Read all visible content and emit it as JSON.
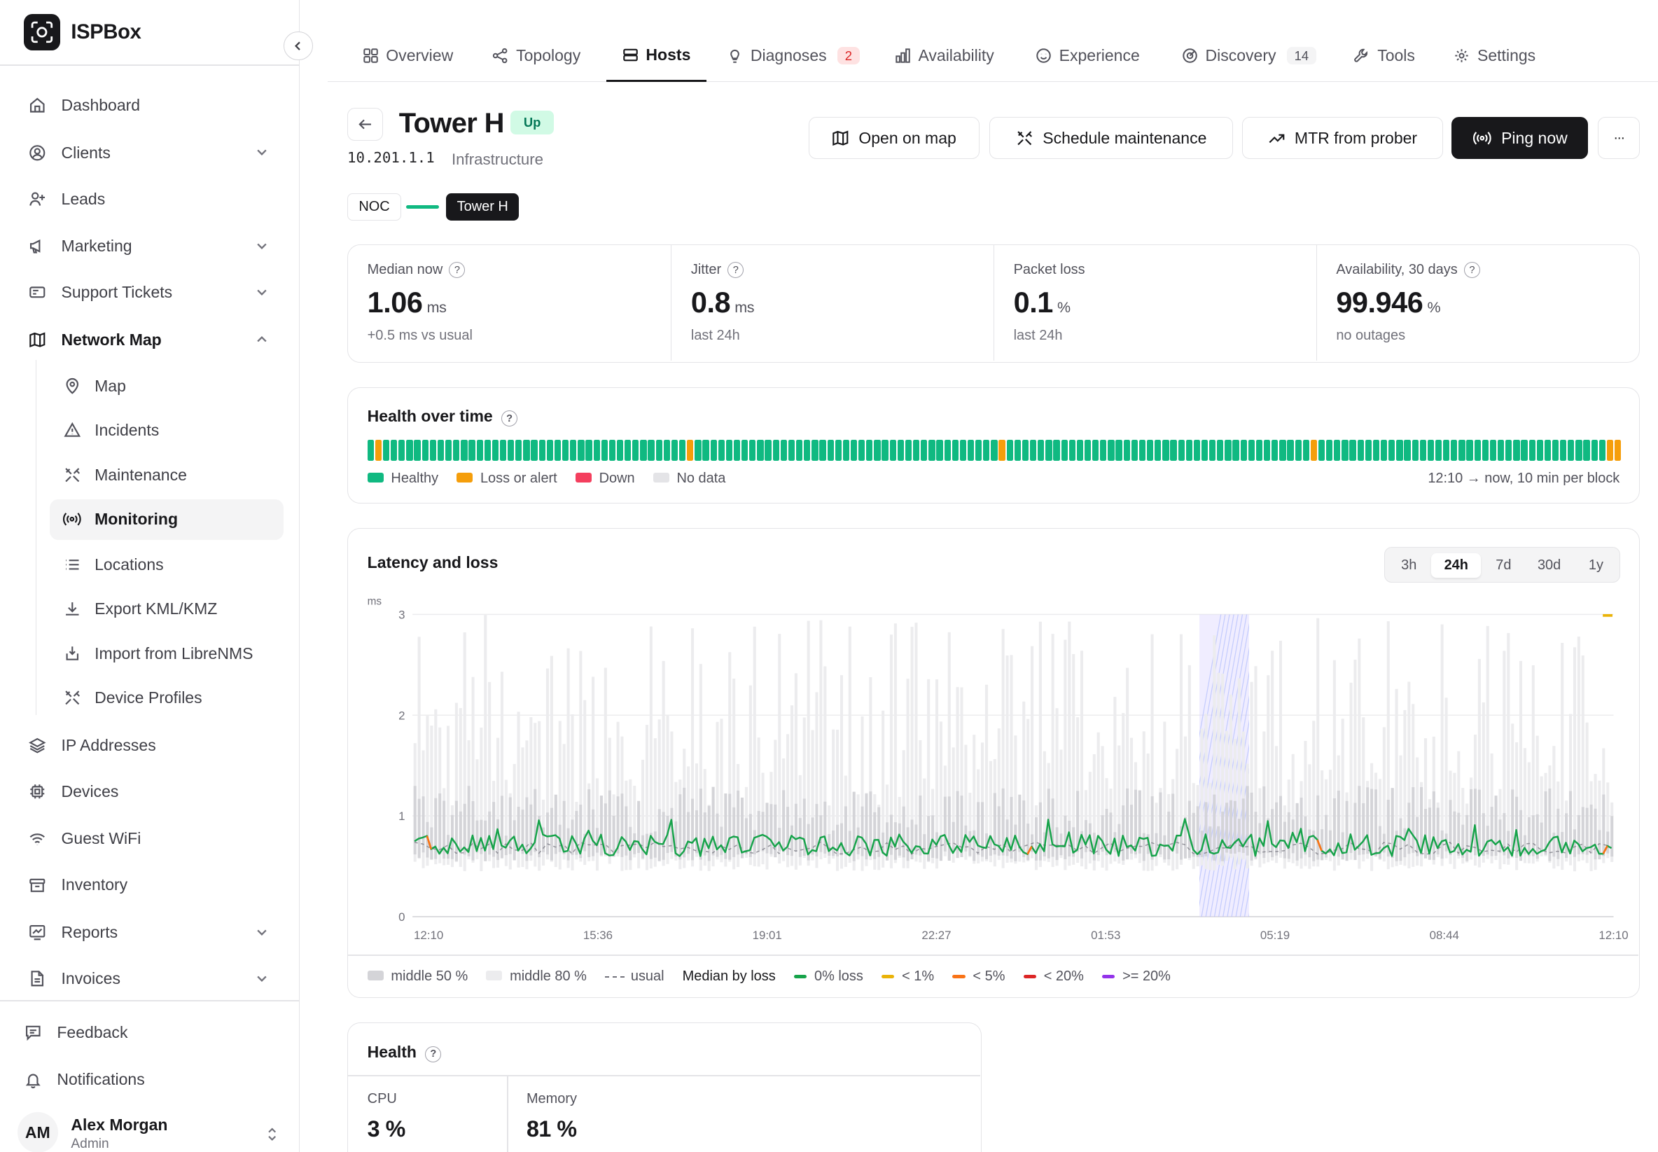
{
  "app": {
    "name": "ISPBox"
  },
  "sidebar": {
    "items": [
      {
        "label": "Dashboard"
      },
      {
        "label": "Clients"
      },
      {
        "label": "Leads"
      },
      {
        "label": "Marketing"
      },
      {
        "label": "Support Tickets"
      },
      {
        "label": "Network Map"
      },
      {
        "label": "IP Addresses"
      },
      {
        "label": "Devices"
      },
      {
        "label": "Guest WiFi"
      },
      {
        "label": "Inventory"
      },
      {
        "label": "Reports"
      },
      {
        "label": "Invoices"
      }
    ],
    "sub_items": [
      {
        "label": "Map"
      },
      {
        "label": "Incidents"
      },
      {
        "label": "Maintenance"
      },
      {
        "label": "Monitoring"
      },
      {
        "label": "Locations"
      },
      {
        "label": "Export KML/KMZ"
      },
      {
        "label": "Import from LibreNMS"
      },
      {
        "label": "Device Profiles"
      }
    ],
    "footer": [
      {
        "label": "Feedback"
      },
      {
        "label": "Notifications"
      }
    ],
    "user": {
      "initials": "AM",
      "name": "Alex Morgan",
      "role": "Admin"
    }
  },
  "tabs": [
    {
      "label": "Overview"
    },
    {
      "label": "Topology"
    },
    {
      "label": "Hosts"
    },
    {
      "label": "Diagnoses",
      "badge": "2"
    },
    {
      "label": "Availability"
    },
    {
      "label": "Experience"
    },
    {
      "label": "Discovery",
      "badge": "14"
    },
    {
      "label": "Tools"
    },
    {
      "label": "Settings"
    }
  ],
  "host": {
    "name": "Tower H",
    "status": "Up",
    "ip": "10.201.1.1",
    "role": "Infrastructure"
  },
  "actions": {
    "open_map": "Open on map",
    "schedule": "Schedule maintenance",
    "mtr": "MTR from prober",
    "ping": "Ping now",
    "more": "···"
  },
  "path": {
    "from": "NOC",
    "to": "Tower H"
  },
  "stats": [
    {
      "label": "Median now",
      "value": "1.06",
      "unit": "ms",
      "sub": "+0.5 ms vs usual"
    },
    {
      "label": "Jitter",
      "value": "0.8",
      "unit": "ms",
      "sub": "last 24h"
    },
    {
      "label": "Packet loss",
      "value": "0.1",
      "unit": "%",
      "sub": "last 24h"
    },
    {
      "label": "Availability, 30 days",
      "value": "99.946",
      "unit": "%",
      "sub": "no outages"
    }
  ],
  "health_over_time": {
    "title": "Health over time",
    "legend": [
      {
        "label": "Healthy",
        "color": "#10b981"
      },
      {
        "label": "Loss or alert",
        "color": "#f59e0b"
      },
      {
        "label": "Down",
        "color": "#f43f5e"
      },
      {
        "label": "No data",
        "color": "#e4e4e7"
      }
    ],
    "range_note": "12:10 → now, 10 min per block",
    "alert_blocks": [
      1,
      41,
      81,
      121,
      159,
      160
    ],
    "block_count": 161
  },
  "latency": {
    "title": "Latency and loss",
    "ranges": [
      "3h",
      "24h",
      "7d",
      "30d",
      "1y"
    ],
    "active_range": "24h",
    "legend": {
      "mid50": "middle 50 %",
      "mid80": "middle 80 %",
      "usual": "usual",
      "median_by_loss": "Median by loss",
      "loss0": "0% loss",
      "loss1": "< 1%",
      "loss5": "< 5%",
      "loss20": "< 20%",
      "loss20p": ">= 20%"
    },
    "colors": {
      "loss0": "#16a34a",
      "loss1": "#eab308",
      "loss5": "#f97316",
      "loss20": "#dc2626",
      "loss20p": "#9333ea"
    }
  },
  "chart_data": {
    "type": "line",
    "title": "Latency and loss",
    "ylabel": "ms",
    "ylim": [
      0,
      3
    ],
    "yticks": [
      "0",
      "1",
      "2",
      "3"
    ],
    "xticks": [
      "12:10",
      "15:36",
      "19:01",
      "22:27",
      "01:53",
      "05:19",
      "08:44",
      "12:10"
    ],
    "grid": true,
    "legend_position": "bottom",
    "series": [
      {
        "name": "0% loss",
        "approx_median_ms": 0.68,
        "range_ms": [
          0.5,
          0.9
        ]
      }
    ]
  },
  "health": {
    "title": "Health",
    "cpu_label": "CPU",
    "cpu_value": "3 %",
    "mem_label": "Memory",
    "mem_value": "81 %"
  }
}
